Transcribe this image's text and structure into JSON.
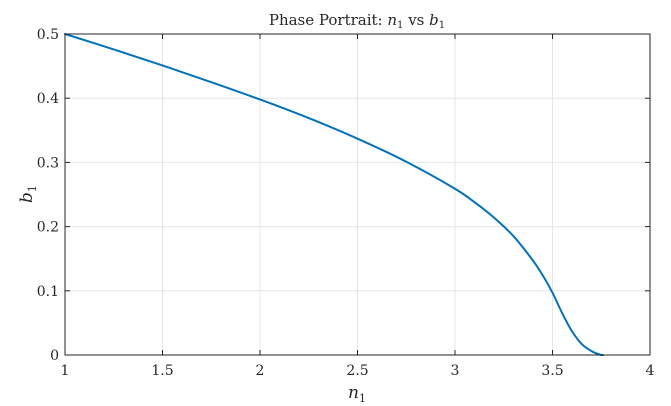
{
  "chart_data": {
    "type": "line",
    "title": {
      "prefix": "Phase Portrait: ",
      "var1": "n",
      "sub1": "1",
      "mid": " vs ",
      "var2": "b",
      "sub2": "1"
    },
    "xlabel": {
      "var": "n",
      "sub": "1"
    },
    "ylabel": {
      "var": "b",
      "sub": "1"
    },
    "xlim": [
      1,
      4
    ],
    "ylim": [
      0,
      0.5
    ],
    "xticks": [
      1,
      1.5,
      2,
      2.5,
      3,
      3.5,
      4
    ],
    "yticks": [
      0,
      0.1,
      0.2,
      0.3,
      0.4,
      0.5
    ],
    "xtick_labels": [
      "1",
      "1.5",
      "2",
      "2.5",
      "3",
      "3.5",
      "4"
    ],
    "ytick_labels": [
      "0",
      "0.1",
      "0.2",
      "0.3",
      "0.4",
      "0.5"
    ],
    "grid": true,
    "series": [
      {
        "color": "#0072BD",
        "x": [
          1.0,
          1.25,
          1.5,
          1.75,
          2.0,
          2.25,
          2.5,
          2.75,
          3.0,
          3.1,
          3.2,
          3.3,
          3.4,
          3.45,
          3.5,
          3.55,
          3.6,
          3.65,
          3.7,
          3.73,
          3.75,
          3.76
        ],
        "y": [
          0.5,
          0.476,
          0.451,
          0.425,
          0.398,
          0.369,
          0.337,
          0.301,
          0.259,
          0.238,
          0.214,
          0.185,
          0.147,
          0.124,
          0.097,
          0.065,
          0.037,
          0.017,
          0.006,
          0.002,
          0.0,
          0.0
        ]
      }
    ]
  }
}
